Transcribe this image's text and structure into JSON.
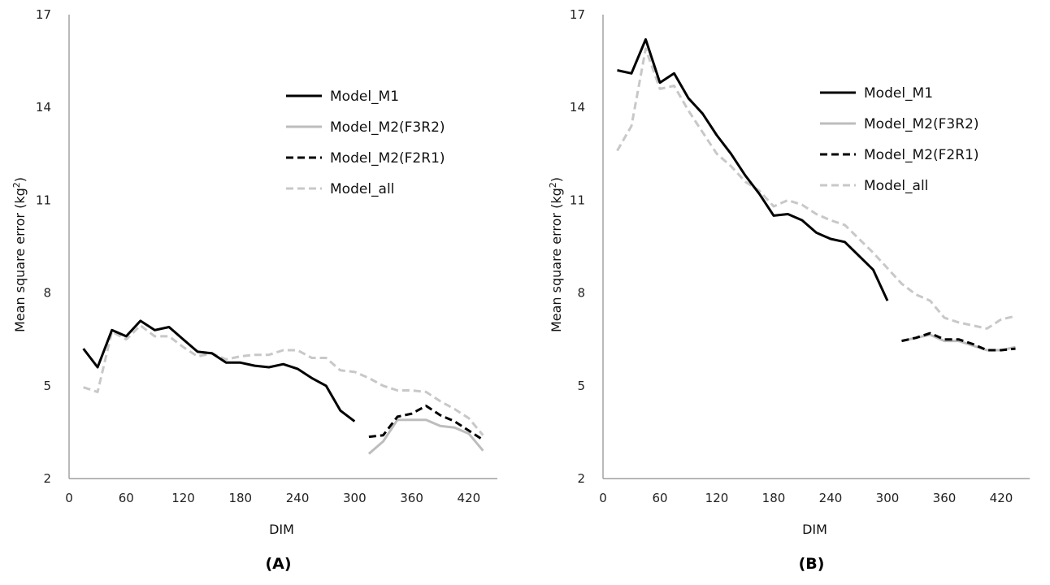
{
  "colors": {
    "Model_M1": "#000000",
    "Model_M2(F3R2)": "#bdbdbd",
    "Model_M2(F2R1)": "#000000",
    "Model_all": "#c8c8c8"
  },
  "chart_data": [
    {
      "type": "line",
      "panel_label": "(A)",
      "xlabel": "DIM",
      "ylabel": "Mean square error (kg²)",
      "ylabel_main": "Mean square error (kg",
      "ylabel_sup": "2",
      "ylabel_end": ")",
      "xlim": [
        0,
        450
      ],
      "ylim": [
        2,
        17
      ],
      "xticks": [
        0,
        60,
        120,
        180,
        240,
        300,
        360,
        420
      ],
      "yticks": [
        2,
        5,
        8,
        11,
        14,
        17
      ],
      "grid": false,
      "legend_position": "top-right",
      "series": [
        {
          "name": "Model_M1",
          "style": "solid",
          "x": [
            15,
            30,
            45,
            60,
            75,
            90,
            105,
            120,
            135,
            150,
            165,
            180,
            195,
            210,
            225,
            240,
            255,
            270,
            285,
            300
          ],
          "y": [
            6.2,
            5.6,
            6.8,
            6.6,
            7.1,
            6.8,
            6.9,
            6.5,
            6.1,
            6.05,
            5.75,
            5.75,
            5.65,
            5.6,
            5.7,
            5.55,
            5.25,
            5.0,
            4.2,
            3.85
          ]
        },
        {
          "name": "Model_M2(F3R2)",
          "style": "solid",
          "x": [
            315,
            330,
            345,
            360,
            375,
            390,
            405,
            420,
            435
          ],
          "y": [
            2.8,
            3.2,
            3.9,
            3.9,
            3.9,
            3.7,
            3.65,
            3.45,
            2.9
          ]
        },
        {
          "name": "Model_M2(F2R1)",
          "style": "dashed",
          "x": [
            315,
            330,
            345,
            360,
            375,
            390,
            405,
            420,
            435
          ],
          "y": [
            3.35,
            3.4,
            4.0,
            4.1,
            4.35,
            4.05,
            3.85,
            3.55,
            3.25
          ]
        },
        {
          "name": "Model_all",
          "style": "dashed",
          "x": [
            15,
            30,
            45,
            60,
            75,
            90,
            105,
            120,
            135,
            150,
            165,
            180,
            195,
            210,
            225,
            240,
            255,
            270,
            285,
            300,
            315,
            330,
            345,
            360,
            375,
            390,
            405,
            420,
            435
          ],
          "y": [
            4.95,
            4.8,
            6.75,
            6.5,
            6.95,
            6.6,
            6.6,
            6.25,
            5.95,
            6.05,
            5.85,
            5.95,
            6.0,
            6.0,
            6.15,
            6.15,
            5.9,
            5.9,
            5.5,
            5.45,
            5.25,
            5.0,
            4.85,
            4.85,
            4.8,
            4.5,
            4.25,
            3.95,
            3.4
          ]
        }
      ]
    },
    {
      "type": "line",
      "panel_label": "(B)",
      "xlabel": "DIM",
      "ylabel": "Mean square error (kg²)",
      "ylabel_main": "Mean square error (kg",
      "ylabel_sup": "2",
      "ylabel_end": ")",
      "xlim": [
        0,
        450
      ],
      "ylim": [
        2,
        17
      ],
      "xticks": [
        0,
        60,
        120,
        180,
        240,
        300,
        360,
        420
      ],
      "yticks": [
        2,
        5,
        8,
        11,
        14,
        17
      ],
      "grid": false,
      "legend_position": "top-right",
      "series": [
        {
          "name": "Model_M1",
          "style": "solid",
          "x": [
            15,
            30,
            45,
            60,
            75,
            90,
            105,
            120,
            135,
            150,
            165,
            180,
            195,
            210,
            225,
            240,
            255,
            270,
            285,
            300
          ],
          "y": [
            15.2,
            15.1,
            16.2,
            14.8,
            15.1,
            14.3,
            13.8,
            13.1,
            12.5,
            11.8,
            11.2,
            10.5,
            10.55,
            10.35,
            9.95,
            9.75,
            9.65,
            9.2,
            8.75,
            7.75
          ]
        },
        {
          "name": "Model_M2(F3R2)",
          "style": "solid",
          "x": [
            315,
            330,
            345,
            360,
            375,
            390,
            405,
            420,
            435
          ],
          "y": [
            6.45,
            6.55,
            6.65,
            6.45,
            6.45,
            6.3,
            6.15,
            6.15,
            6.25
          ]
        },
        {
          "name": "Model_M2(F2R1)",
          "style": "dashed",
          "x": [
            315,
            330,
            345,
            360,
            375,
            390,
            405,
            420,
            435
          ],
          "y": [
            6.45,
            6.55,
            6.7,
            6.5,
            6.5,
            6.35,
            6.15,
            6.15,
            6.2
          ]
        },
        {
          "name": "Model_all",
          "style": "dashed",
          "x": [
            15,
            30,
            45,
            60,
            75,
            90,
            105,
            120,
            135,
            150,
            165,
            180,
            195,
            210,
            225,
            240,
            255,
            270,
            285,
            300,
            315,
            330,
            345,
            360,
            375,
            390,
            405,
            420,
            435
          ],
          "y": [
            12.6,
            13.4,
            15.9,
            14.6,
            14.7,
            13.9,
            13.2,
            12.5,
            12.1,
            11.6,
            11.3,
            10.8,
            11.0,
            10.85,
            10.55,
            10.35,
            10.2,
            9.75,
            9.3,
            8.8,
            8.3,
            7.95,
            7.75,
            7.2,
            7.05,
            6.95,
            6.85,
            7.15,
            7.25
          ]
        }
      ]
    }
  ]
}
